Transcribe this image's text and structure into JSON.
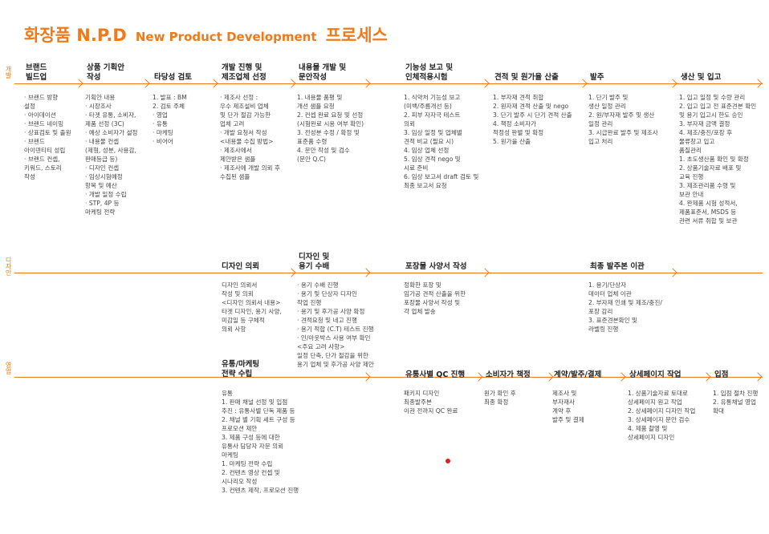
{
  "title": {
    "korean": "화장품 N.P.D",
    "english": "New Product Development",
    "suffix": "프로세스"
  },
  "colors": {
    "accent": "#f07a1a",
    "text": "#333333",
    "dot": "#e02020"
  },
  "lanes": [
    {
      "label": "개발",
      "steps": [
        {
          "title": "브랜드\n빌드업",
          "body": "· 브랜드 방향\n  설정\n· 아이데이션\n· 브랜드 네이밍\n· 상표검토 및 출원\n· 브랜드\n  아이덴티티 성립\n· 브랜드 컨셉,\n  키워드, 스토리\n  작성"
        },
        {
          "title": "상품 기획안\n작성",
          "body": "기획안 내용\n· 시장조사\n· 타겟 유통, 소비자,\n  제품 선정 (3C)\n· 예상 소비자가 설정\n· 내용물 컨셉\n  (제형, 성분, 사용감,\n  판매등급 등)\n· 디자인 컨셉\n· 임상시험예정\n  항목 및 예산\n· 개발 일정 수립\n· STP, 4P 등\n  마케팅 전략"
        },
        {
          "title": "타당성 검토",
          "body": "1. 발표 : BM\n2. 검토 주체\n  · 영업\n  · 유통\n  · 마케팅\n  · 비어어"
        },
        {
          "title": "개발 진행 및\n제조업체 선정",
          "body": "· 제조사 선정 :\n  우수 제조설비 업체\n  및 단가 절감 가능한\n  업체 고려\n· 개발 요청서 작성\n<내용물 수집 방법>\n· 제조사에서\n  제안받은 샘플\n· 제조사에 개발 의뢰 후\n  수집된 샘플"
        },
        {
          "title": "내용물 개발 및\n문안작성",
          "body": "1. 내용물 품평 및\n   개선 샘플 요청\n2. 컨셉 완료 요청 및 선정\n   (시험완료 시용 여부 확인)\n3. 전성분 수정 / 확정 및\n   표준품 수령\n4. 문안 작성 및 검수\n   (문안 Q.C)"
        },
        {
          "title": "기능성 보고 및\n인체적용시험",
          "body": "1. 식약처 기능성 보고\n   (미백/주름개선 등)\n2. 피부 자자극 테스트\n   의뢰\n3. 임상 일정 및 업체별\n   견적 비교 (필요 시)\n4. 임상 업체 선정\n5. 임상 견적 nego 및\n   시료 준비\n6. 임상 보고서 draft 검토 및\n   최종 보고서 요청"
        },
        {
          "title": "견적 및 원가율 산출",
          "body": "1. 부자재 견적 취합\n2. 원자재 견적 산출 및 nego\n3. 단기 발주 시 단기 견적 산출\n4. 책정 소비자가\n   적정성 판별 및 확정\n5. 원가율 산출"
        },
        {
          "title": "발주",
          "body": "1. 단기 발주 및\n   생산 일정 관리\n2. 원/부자재 발주 및 생산\n   일정 관리\n3. 시급완료 발주 및 제조사\n   입고 처리"
        },
        {
          "title": "생산 및 입고",
          "body": "1. 입고 일정 및 수량 관리\n2. 입고 입고 전 표준견본 확인\n   및 용기 입고시 한도 승인\n3. 부자재 금액 결정\n4. 제조/충진/포장 후\n   물류창고 입고\n품질관리\n1. 초도생산품 확인 및 확정\n2. 상품기술자료 배포 및\n   교육 진행\n3. 제조관리품 수령 및\n   보관 안내\n4. 완제품 시험 성적서,\n   제품표준서, MSDS 등\n   관련 서류 취합 및 보관"
        }
      ]
    },
    {
      "label": "디자인",
      "steps": [
        {
          "title": "디자인 의뢰",
          "body": "디자인 의뢰서\n작성 및 의뢰\n<디자인 의뢰서 내용>\n타겟 디자인, 용기 사양,\n미감일 등 구체적\n의뢰 사항"
        },
        {
          "title": "디자인 및\n용기 수배",
          "body": "· 용기 수배 진행\n· 용기 및 단상자 디자인\n  작업 진행\n· 용기 및 후가공 사양 확정\n· 견적요청 및 네고 진행\n· 용기 적합 (C.T) 테스트 진행\n· 인/아웃박스 사용 여부 확인\n<주요 고려 사항>\n일정 단축, 단가 절감을 위한\n용기 업체 및 후가공 사양 제안"
        },
        {
          "title": "포장물 사양서 작성",
          "body": "정확한 포장 및\n임가공 견적 산출을 위한\n포장물 사양서 작성 및\n각 업체 발송"
        },
        {
          "title": "최종 발주본 이관",
          "body": "1. 용기/단상자\n   데이터 업체 이관\n2. 부자재 인쇄 및 제조/충진/\n   포장 감리\n3. 표준견본확인 및\n   라벨링 진행"
        }
      ]
    },
    {
      "label": "영업",
      "steps": [
        {
          "title": "유통/마케팅\n전략 수립",
          "body": "유통\n1. 판매 채널 선정 및 입점\n   추진 : 유통사별 단독 제품 등\n2. 채널 별 기획 세트 구성 등\n   프로모션 제안\n3. 제품 구성 등에 대한\n유통사 담당자 자문 의뢰\n마케팅\n1. 마케팅 전략 수립\n2. 컨텐츠 영상 컨셉 및\n   시나리오 작성\n3. 컨텐츠 제작, 프로모션 진행"
        },
        {
          "title": "유통사별 QC 진행",
          "body": "패키지 디자인\n최종발주본\n이관 전까지 QC 완료"
        },
        {
          "title": "소비자가 책정",
          "body": "원가 확인 후\n최종 확정"
        },
        {
          "title": "계약/발주/결제",
          "body": "제조사 및\n부자재사\n계약 후\n발주 및 결제"
        },
        {
          "title": "상세페이지 작업",
          "body": "1. 상품기술자료 토대로\n   상세페이지 원고 작업\n2. 상세페이지 디자인 작업\n3. 상세페이지 문안 검수\n4. 제품 촬영 및\n   상세페이지 디자인"
        },
        {
          "title": "입점",
          "body": "1. 입점 절차 진행\n2. 유통채널 영업\n   확대"
        }
      ]
    }
  ]
}
